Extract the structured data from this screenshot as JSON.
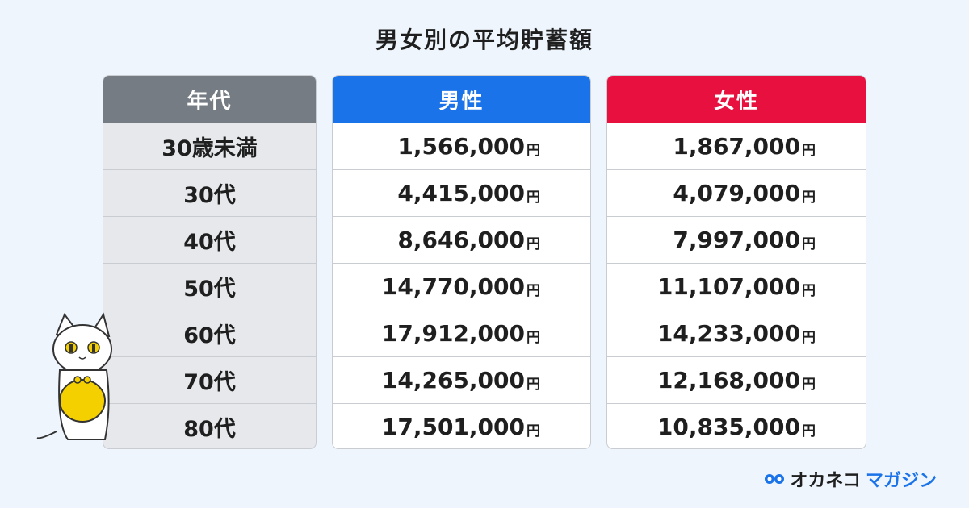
{
  "title": "男女別の平均貯蓄額",
  "headers": {
    "age": "年代",
    "male": "男性",
    "female": "女性"
  },
  "unit": "円",
  "rows": [
    {
      "age": "30歳未満",
      "male": "1,566,000",
      "female": "1,867,000"
    },
    {
      "age": "30代",
      "male": "4,415,000",
      "female": "4,079,000"
    },
    {
      "age": "40代",
      "male": "8,646,000",
      "female": "7,997,000"
    },
    {
      "age": "50代",
      "male": "14,770,000",
      "female": "11,107,000"
    },
    {
      "age": "60代",
      "male": "17,912,000",
      "female": "14,233,000"
    },
    {
      "age": "70代",
      "male": "14,265,000",
      "female": "12,168,000"
    },
    {
      "age": "80代",
      "male": "17,501,000",
      "female": "10,835,000"
    }
  ],
  "logo": {
    "part1": "オカネコ",
    "part2": "マガジン"
  },
  "colors": {
    "male": "#1a73e8",
    "female": "#e8103f",
    "age_header": "#767c83",
    "background": "#eef5fc"
  },
  "chart_data": {
    "type": "table",
    "title": "男女別の平均貯蓄額",
    "columns": [
      "年代",
      "男性",
      "女性"
    ],
    "categories": [
      "30歳未満",
      "30代",
      "40代",
      "50代",
      "60代",
      "70代",
      "80代"
    ],
    "series": [
      {
        "name": "男性",
        "values": [
          1566000,
          4415000,
          8646000,
          14770000,
          17912000,
          14265000,
          17501000
        ]
      },
      {
        "name": "女性",
        "values": [
          1867000,
          4079000,
          7997000,
          11107000,
          14233000,
          12168000,
          10835000
        ]
      }
    ],
    "unit": "円"
  }
}
